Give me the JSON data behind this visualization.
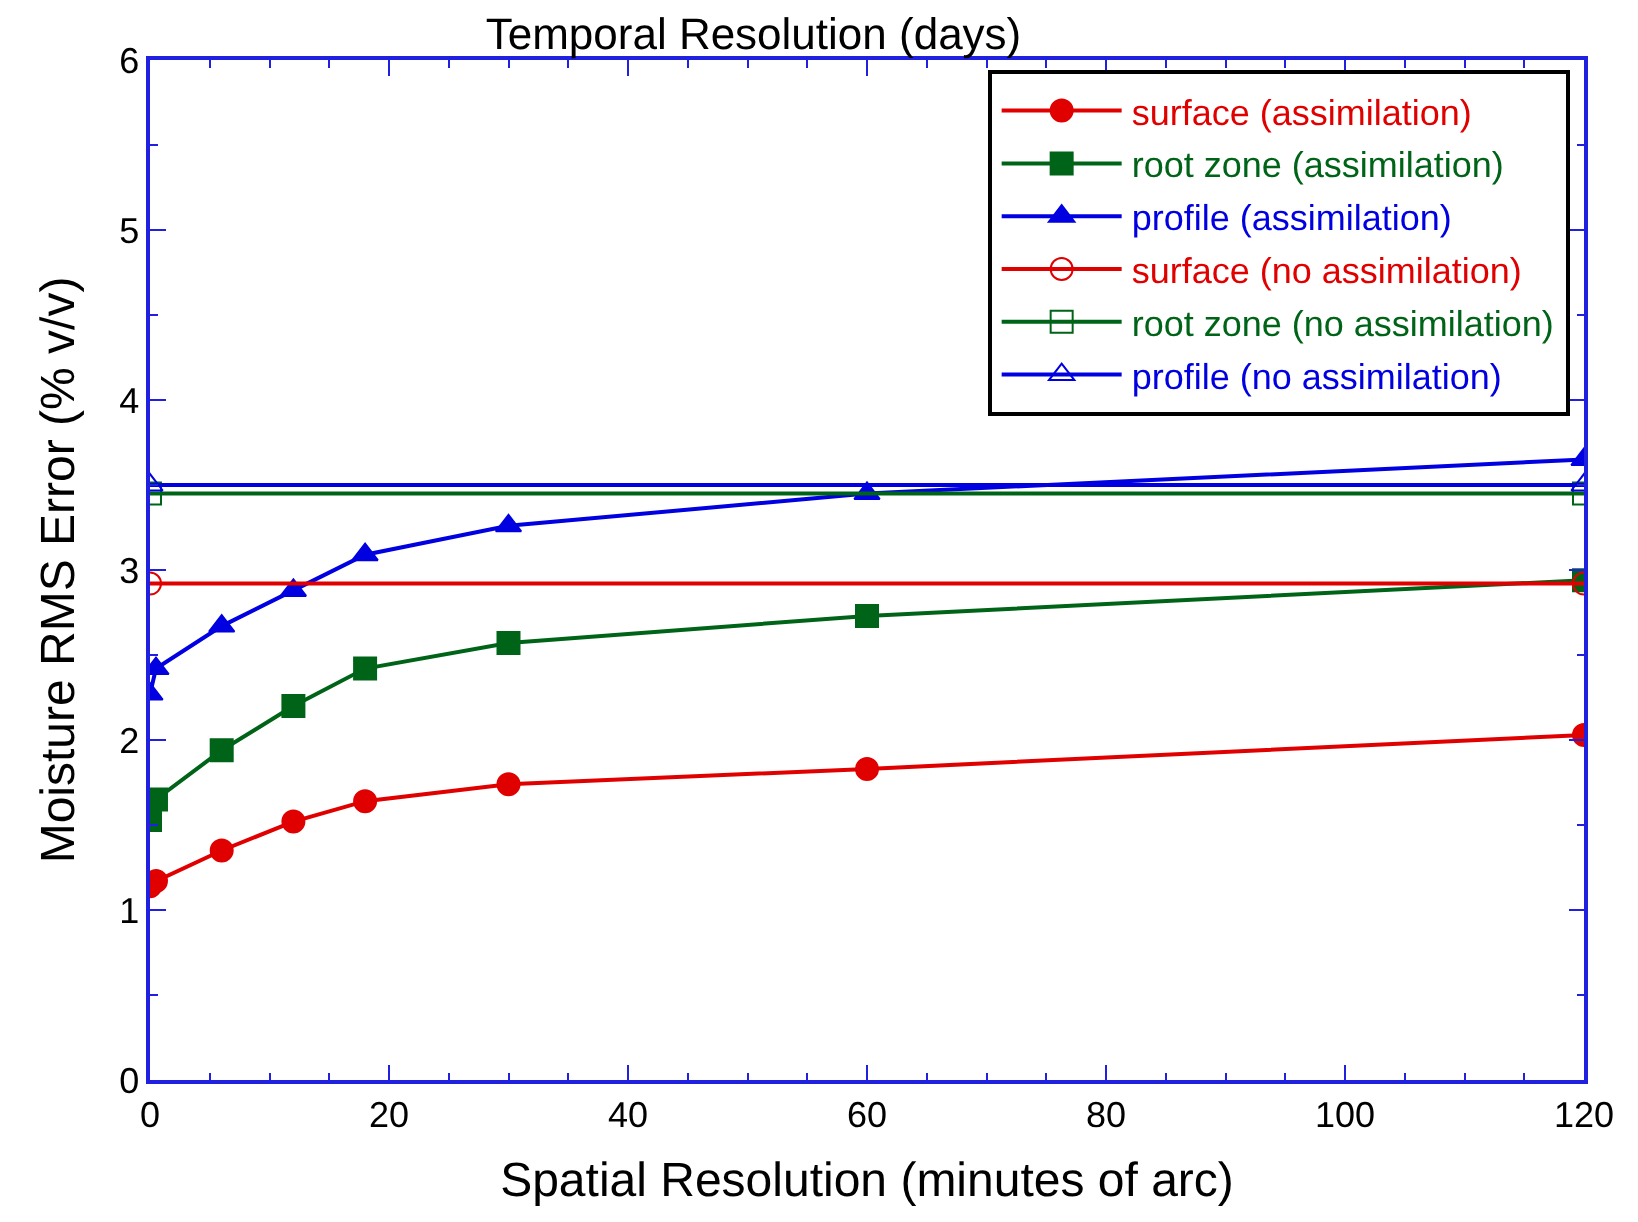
{
  "chart_data": {
    "type": "line",
    "title": "Temporal Resolution (days)",
    "xlabel": "Spatial Resolution (minutes of arc)",
    "ylabel": "Moisture RMS Error (% v/v)",
    "xlim": [
      0,
      120
    ],
    "xticks": [
      0,
      20,
      40,
      60,
      80,
      100,
      120
    ],
    "ylim": [
      0,
      6
    ],
    "yticks": [
      0,
      1,
      2,
      3,
      4,
      5,
      6
    ],
    "legend": "top right",
    "series": [
      {
        "name": "surface (assimilation)",
        "color": "#e00000",
        "marker": "circle",
        "x": [
          0,
          0.5,
          6,
          12,
          18,
          30,
          60,
          120
        ],
        "values": [
          1.14,
          1.17,
          1.35,
          1.52,
          1.64,
          1.74,
          1.83,
          2.03
        ]
      },
      {
        "name": "root zone (assimilation)",
        "color": "#006418",
        "marker": "square",
        "x": [
          0,
          0.5,
          6,
          12,
          18,
          30,
          60,
          120
        ],
        "values": [
          1.53,
          1.65,
          1.94,
          2.2,
          2.42,
          2.57,
          2.73,
          2.94
        ]
      },
      {
        "name": "profile (assimilation)",
        "color": "#0000e0",
        "marker": "triangle",
        "x": [
          0,
          0.5,
          6,
          12,
          18,
          30,
          60,
          120
        ],
        "values": [
          2.27,
          2.42,
          2.67,
          2.88,
          3.09,
          3.26,
          3.45,
          3.65
        ]
      },
      {
        "name": "surface (no assimilation)",
        "color": "#e00000",
        "marker": "circle-open",
        "x": [
          0,
          120
        ],
        "values": [
          2.92,
          2.92
        ]
      },
      {
        "name": "root zone (no assimilation)",
        "color": "#006418",
        "marker": "square-open",
        "x": [
          0,
          120
        ],
        "values": [
          3.45,
          3.45
        ]
      },
      {
        "name": "profile (no assimilation)",
        "color": "#0000e0",
        "marker": "triangle-open",
        "x": [
          0,
          120
        ],
        "values": [
          3.5,
          3.5
        ]
      }
    ]
  }
}
